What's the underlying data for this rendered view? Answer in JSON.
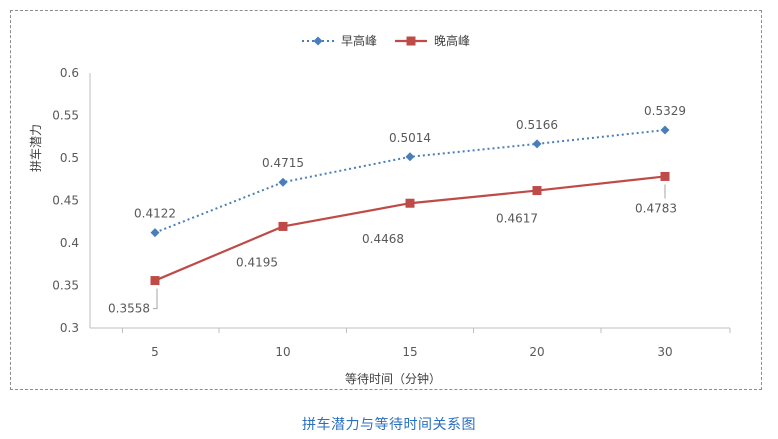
{
  "caption": "拼车潜力与等待时间关系图",
  "chart_data": {
    "type": "line",
    "categories": [
      "5",
      "10",
      "15",
      "20",
      "30"
    ],
    "xlabel": "等待时间（分钟）",
    "ylabel": "拼车潜力",
    "ylim": [
      0.3,
      0.6
    ],
    "yticks": [
      "0.3",
      "0.35",
      "0.4",
      "0.45",
      "0.5",
      "0.55",
      "0.6"
    ],
    "grid": false,
    "legend": "top",
    "series": [
      {
        "name": "早高峰",
        "values": [
          0.4122,
          0.4715,
          0.5014,
          0.5166,
          0.5329
        ],
        "labels": [
          "0.4122",
          "0.4715",
          "0.5014",
          "0.5166",
          "0.5329"
        ],
        "color": "#4a7ebb",
        "style": "dotted",
        "marker": "diamond"
      },
      {
        "name": "晚高峰",
        "values": [
          0.3558,
          0.4195,
          0.4468,
          0.4617,
          0.4783
        ],
        "labels": [
          "0.3558",
          "0.4195",
          "0.4468",
          "0.4617",
          "0.4783"
        ],
        "color": "#be4b48",
        "style": "solid",
        "marker": "square"
      }
    ]
  }
}
